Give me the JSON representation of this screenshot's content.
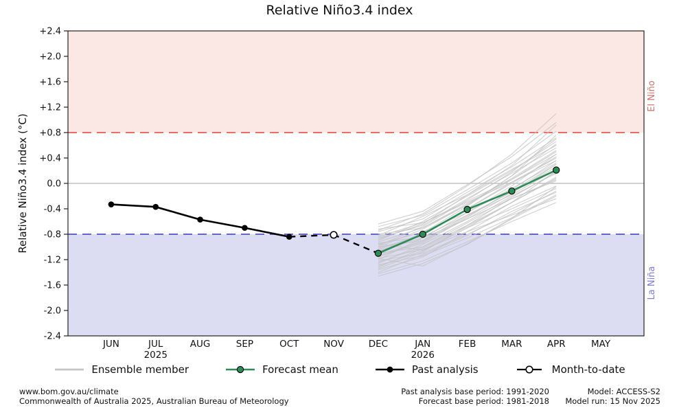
{
  "title": "Relative Niño3.4 index",
  "chart_data": {
    "type": "line",
    "title": "Relative Niño3.4 index",
    "ylabel": "Relative Niño3.4 index (°C)",
    "xlabel": "",
    "ylim": [
      -2.4,
      2.4
    ],
    "grid": false,
    "legend_position": "bottom",
    "ytick_labels": [
      "+2.4",
      "+2.0",
      "+1.6",
      "+1.2",
      "+0.8",
      "+0.4",
      "0.0",
      "-0.4",
      "-0.8",
      "-1.2",
      "-1.6",
      "-2.0",
      "-2.4"
    ],
    "months": [
      "JUN",
      "JUL",
      "AUG",
      "SEP",
      "OCT",
      "NOV",
      "DEC",
      "JAN",
      "FEB",
      "MAR",
      "APR",
      "MAY"
    ],
    "year_labels": [
      {
        "index": 1,
        "label": "2025"
      },
      {
        "index": 7,
        "label": "2026"
      }
    ],
    "bands": {
      "el_nino_threshold": 0.8,
      "el_nino_label": "El Niño",
      "la_nina_threshold": -0.8,
      "la_nina_label": "La Niña"
    },
    "series": {
      "past_analysis": {
        "months": [
          "JUN",
          "JUL",
          "AUG",
          "SEP",
          "OCT"
        ],
        "values": [
          -0.33,
          -0.37,
          -0.57,
          -0.7,
          -0.84
        ]
      },
      "month_to_date": {
        "month": "NOV",
        "value": -0.81
      },
      "forecast_mean": {
        "months": [
          "DEC",
          "JAN",
          "FEB",
          "MAR",
          "APR"
        ],
        "values": [
          -1.1,
          -0.8,
          -0.41,
          -0.12,
          0.21
        ]
      },
      "ensemble_members": [
        [
          -1.32,
          -1.02,
          -0.68,
          -0.3,
          0.08
        ],
        [
          -1.12,
          -0.92,
          -0.52,
          -0.12,
          0.3
        ],
        [
          -0.92,
          -0.7,
          -0.32,
          0.08,
          0.52
        ],
        [
          -1.42,
          -1.22,
          -0.92,
          -0.6,
          -0.3
        ],
        [
          -1.02,
          -0.82,
          -0.4,
          0.02,
          0.4
        ],
        [
          -1.22,
          -1.1,
          -0.8,
          -0.48,
          -0.12
        ],
        [
          -0.82,
          -0.52,
          -0.18,
          0.22,
          0.6
        ],
        [
          -1.06,
          -0.86,
          -0.56,
          -0.24,
          0.06
        ],
        [
          -1.26,
          -0.96,
          -0.6,
          -0.2,
          0.16
        ],
        [
          -0.72,
          -0.62,
          -0.3,
          0.02,
          0.36
        ],
        [
          -1.36,
          -1.16,
          -0.76,
          -0.36,
          -0.04
        ],
        [
          -0.96,
          -0.76,
          -0.46,
          -0.04,
          0.46
        ],
        [
          -1.16,
          -0.9,
          -0.5,
          -0.14,
          0.26
        ],
        [
          -0.86,
          -0.66,
          -0.24,
          0.16,
          0.56
        ],
        [
          -1.46,
          -1.26,
          -0.96,
          -0.56,
          -0.2
        ],
        [
          -1.0,
          -0.72,
          -0.34,
          0.06,
          0.5
        ],
        [
          -1.2,
          -0.86,
          -0.46,
          -0.08,
          0.32
        ],
        [
          -0.76,
          -0.56,
          -0.14,
          0.26,
          0.72
        ],
        [
          -1.1,
          -1.0,
          -0.66,
          -0.3,
          0.1
        ],
        [
          -0.9,
          -0.6,
          -0.2,
          0.2,
          0.66
        ],
        [
          -1.3,
          -1.06,
          -0.7,
          -0.4,
          -0.08
        ],
        [
          -1.04,
          -0.8,
          -0.4,
          0.0,
          0.42
        ],
        [
          -0.8,
          -0.7,
          -0.34,
          0.12,
          0.76
        ],
        [
          -1.4,
          -1.12,
          -0.82,
          -0.44,
          -0.14
        ],
        [
          -0.94,
          -0.84,
          -0.5,
          -0.18,
          0.22
        ],
        [
          -1.14,
          -0.94,
          -0.54,
          -0.1,
          0.36
        ],
        [
          -0.68,
          -0.5,
          -0.1,
          0.32,
          0.82
        ],
        [
          -1.24,
          -1.0,
          -0.62,
          -0.24,
          0.04
        ],
        [
          -0.84,
          -0.62,
          -0.28,
          0.06,
          0.46
        ],
        [
          -1.0,
          -0.9,
          -0.56,
          -0.16,
          0.3
        ],
        [
          -0.64,
          -0.44,
          -0.02,
          0.42,
          0.96
        ],
        [
          -1.18,
          -1.04,
          -0.76,
          -0.5,
          -0.24
        ],
        [
          -0.88,
          -0.64,
          -0.18,
          0.28,
          0.92
        ],
        [
          -1.08,
          -0.78,
          -0.36,
          0.12,
          0.62
        ],
        [
          -0.74,
          -0.48,
          -0.04,
          0.46,
          1.1
        ],
        [
          -1.34,
          -1.08,
          -0.66,
          -0.22,
          0.18
        ],
        [
          -0.98,
          -0.68,
          -0.26,
          0.18,
          0.7
        ],
        [
          -1.28,
          -1.14,
          -0.86,
          -0.54,
          -0.18
        ],
        [
          -1.18,
          -1.3,
          -0.95,
          -0.55,
          -0.05
        ],
        [
          -0.95,
          -1.05,
          -0.7,
          -0.3,
          0.2
        ]
      ]
    },
    "colors": {
      "el_nino_band": "#fbe7e3",
      "la_nina_band": "#dcdcf3",
      "el_nino_line": "#e65c50",
      "la_nina_line": "#5053c4",
      "el_nino_text": "#c8736a",
      "la_nina_text": "#7b7ecb",
      "forecast": "#2e8b57",
      "past": "#000000",
      "ensemble": "#c4c4c4",
      "zero_line": "#b5b5b5"
    }
  },
  "legend": [
    {
      "label": "Ensemble member",
      "type": "ensemble"
    },
    {
      "label": "Forecast mean",
      "type": "forecast"
    },
    {
      "label": "Past analysis",
      "type": "past"
    },
    {
      "label": "Month-to-date",
      "type": "mtd"
    }
  ],
  "footer": {
    "left_line1": "www.bom.gov.au/climate",
    "left_line2": "Commonwealth of Australia 2025, Australian Bureau of Meteorology",
    "mid_line1": "Past analysis base period: 1991-2020",
    "mid_line2": "Forecast base period: 1981-2018",
    "right_line1": "Model: ACCESS-S2",
    "right_line2": "Model run: 15 Nov 2025"
  }
}
